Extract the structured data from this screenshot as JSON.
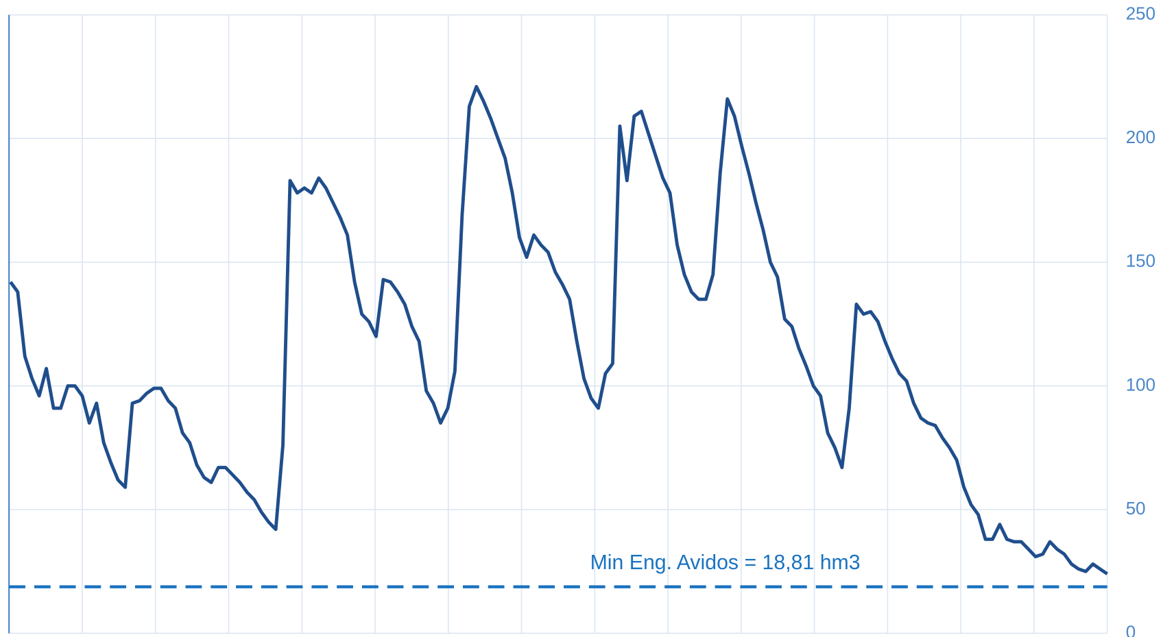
{
  "chart_data": {
    "type": "line",
    "series": [
      {
        "color": "#1f4e8c",
        "values": [
          142,
          138,
          112,
          103,
          96,
          107,
          91,
          91,
          100,
          100,
          96,
          85,
          93,
          77,
          69,
          62,
          59,
          93,
          94,
          97,
          99,
          99,
          94,
          91,
          81,
          77,
          68,
          63,
          61,
          67,
          67,
          64,
          61,
          57,
          54,
          49,
          45,
          42,
          76,
          183,
          178,
          180,
          178,
          184,
          180,
          174,
          168,
          161,
          142,
          129,
          126,
          120,
          143,
          142,
          138,
          133,
          124,
          118,
          98,
          93,
          85,
          91,
          106,
          169,
          213,
          221,
          215,
          208,
          200,
          192,
          178,
          160,
          152,
          161,
          157,
          154,
          146,
          141,
          135,
          118,
          103,
          95,
          91,
          105,
          109,
          205,
          183,
          209,
          211,
          202,
          193,
          184,
          178,
          157,
          145,
          138,
          135,
          135,
          145,
          186,
          216,
          209,
          197,
          186,
          174,
          163,
          150,
          144,
          127,
          124,
          115,
          108,
          100,
          96,
          81,
          75,
          67,
          91,
          133,
          129,
          130,
          126,
          118,
          111,
          105,
          102,
          93,
          87,
          85,
          84,
          79,
          75,
          70,
          59,
          52,
          48,
          38,
          38,
          44,
          38,
          37,
          37,
          34,
          31,
          32,
          37,
          34,
          32,
          28,
          26,
          25,
          28,
          26,
          24
        ]
      }
    ],
    "ylim": [
      0,
      250
    ],
    "yticks": [
      0,
      50,
      100,
      150,
      200,
      250
    ],
    "grid": true,
    "reference_line": {
      "value": 18.81,
      "label": "Min Eng. Avidos = 18,81 hm3",
      "color": "#1a73c0"
    }
  }
}
